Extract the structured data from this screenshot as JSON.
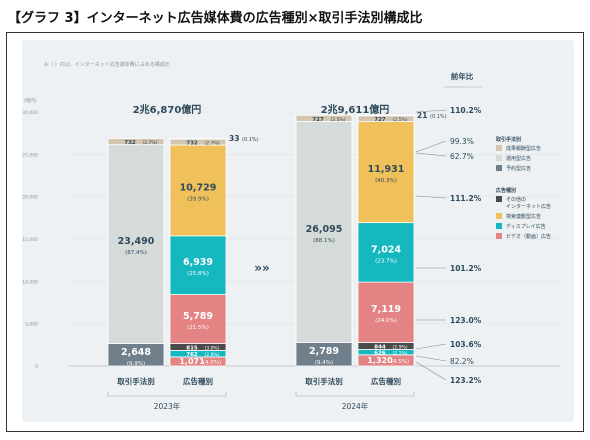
{
  "page_title": "【グラフ 3】インターネット広告媒体費の広告種別×取引手法別構成比",
  "colors": {
    "performance": "#d2c6b1",
    "programmatic": "#d5dbd9",
    "reserved": "#6f7f8b",
    "other": "#4a4a4a",
    "search": "#f0c05a",
    "display": "#15b8bf",
    "video": "#e38383",
    "panel": "#eef1f3",
    "text": "#2f4a5c"
  },
  "chart_data": {
    "type": "bar",
    "note": "※（ ）内は、インターネット広告媒体費に占める構成比",
    "yunit": "(億円)",
    "ylim": [
      0,
      30000
    ],
    "yticks": [
      0,
      5000,
      10000,
      15000,
      20000,
      25000,
      30000
    ],
    "ytick_labels": [
      "0",
      "5,000",
      "10,000",
      "15,000",
      "20,000",
      "25,000",
      "30,000"
    ],
    "yoy_header": "前年比",
    "arrow": "»»",
    "years": [
      {
        "year": "2023年",
        "total": "2兆6,870億円",
        "bars": [
          {
            "label": "取引手法別",
            "segments": [
              {
                "key": "reserved",
                "value": 2648,
                "text": "2,648",
                "pct": "(9.9%)"
              },
              {
                "key": "programmatic",
                "value": 23490,
                "text": "23,490",
                "pct": "(87.4%)"
              },
              {
                "key": "performance",
                "value": 732,
                "text": "732",
                "pct": "(2.7%)"
              }
            ]
          },
          {
            "label": "広告種別",
            "segments": [
              {
                "key": "video",
                "value": 1071,
                "text": "1,071",
                "pct": "(4.0%)"
              },
              {
                "key": "display",
                "value": 762,
                "text": "762",
                "pct": "(2.8%)"
              },
              {
                "key": "other",
                "value": 815,
                "text": "815",
                "pct": "(3.0%)"
              },
              {
                "key": "video",
                "value": 5789,
                "text": "5,789",
                "pct": "(21.5%)"
              },
              {
                "key": "display",
                "value": 6939,
                "text": "6,939",
                "pct": "(25.8%)"
              },
              {
                "key": "search",
                "value": 10729,
                "text": "10,729",
                "pct": "(39.9%)"
              },
              {
                "key": "performance",
                "value": 732,
                "text": "732",
                "pct": "(2.7%)"
              },
              {
                "key": "other",
                "value": 33,
                "text": "33",
                "pct": "(0.1%)"
              }
            ]
          }
        ]
      },
      {
        "year": "2024年",
        "total": "2兆9,611億円",
        "bars": [
          {
            "label": "取引手法別",
            "segments": [
              {
                "key": "reserved",
                "value": 2789,
                "text": "2,789",
                "pct": "(9.4%)"
              },
              {
                "key": "programmatic",
                "value": 26095,
                "text": "26,095",
                "pct": "(88.1%)"
              },
              {
                "key": "performance",
                "value": 727,
                "text": "727",
                "pct": "(2.5%)"
              }
            ]
          },
          {
            "label": "広告種別",
            "segments": [
              {
                "key": "video",
                "value": 1320,
                "text": "1,320",
                "pct": "(4.5%)"
              },
              {
                "key": "display",
                "value": 626,
                "text": "626",
                "pct": "(2.1%)"
              },
              {
                "key": "other",
                "value": 844,
                "text": "844",
                "pct": "(2.9%)"
              },
              {
                "key": "video",
                "value": 7119,
                "text": "7,119",
                "pct": "(24.0%)"
              },
              {
                "key": "display",
                "value": 7024,
                "text": "7,024",
                "pct": "(23.7%)"
              },
              {
                "key": "search",
                "value": 11931,
                "text": "11,931",
                "pct": "(40.3%)"
              },
              {
                "key": "performance",
                "value": 727,
                "text": "727",
                "pct": "(2.5%)"
              },
              {
                "key": "other",
                "value": 21,
                "text": "21",
                "pct": "(0.1%)"
              }
            ]
          }
        ]
      }
    ],
    "yoy": [
      {
        "text": "110.2%",
        "target": "total"
      },
      {
        "text": "99.3%",
        "target": "performance"
      },
      {
        "text": "62.7%",
        "target": "other-top"
      },
      {
        "text": "111.2%",
        "target": "search"
      },
      {
        "text": "101.2%",
        "target": "display"
      },
      {
        "text": "123.0%",
        "target": "video"
      },
      {
        "text": "103.6%",
        "target": "other"
      },
      {
        "text": "82.2%",
        "target": "display-small"
      },
      {
        "text": "123.2%",
        "target": "video-small"
      }
    ],
    "legend": [
      {
        "title": "取引手法別",
        "items": [
          {
            "key": "performance",
            "label": "成果報酬型広告"
          },
          {
            "key": "programmatic",
            "label": "運用型広告"
          },
          {
            "key": "reserved",
            "label": "予約型広告"
          }
        ]
      },
      {
        "title": "広告種別",
        "items": [
          {
            "key": "other",
            "label": "その他の",
            "label2": "インターネット広告"
          },
          {
            "key": "search",
            "label": "検索連動型広告"
          },
          {
            "key": "display",
            "label": "ディスプレイ広告"
          },
          {
            "key": "video",
            "label": "ビデオ（動画）広告"
          }
        ]
      }
    ]
  }
}
